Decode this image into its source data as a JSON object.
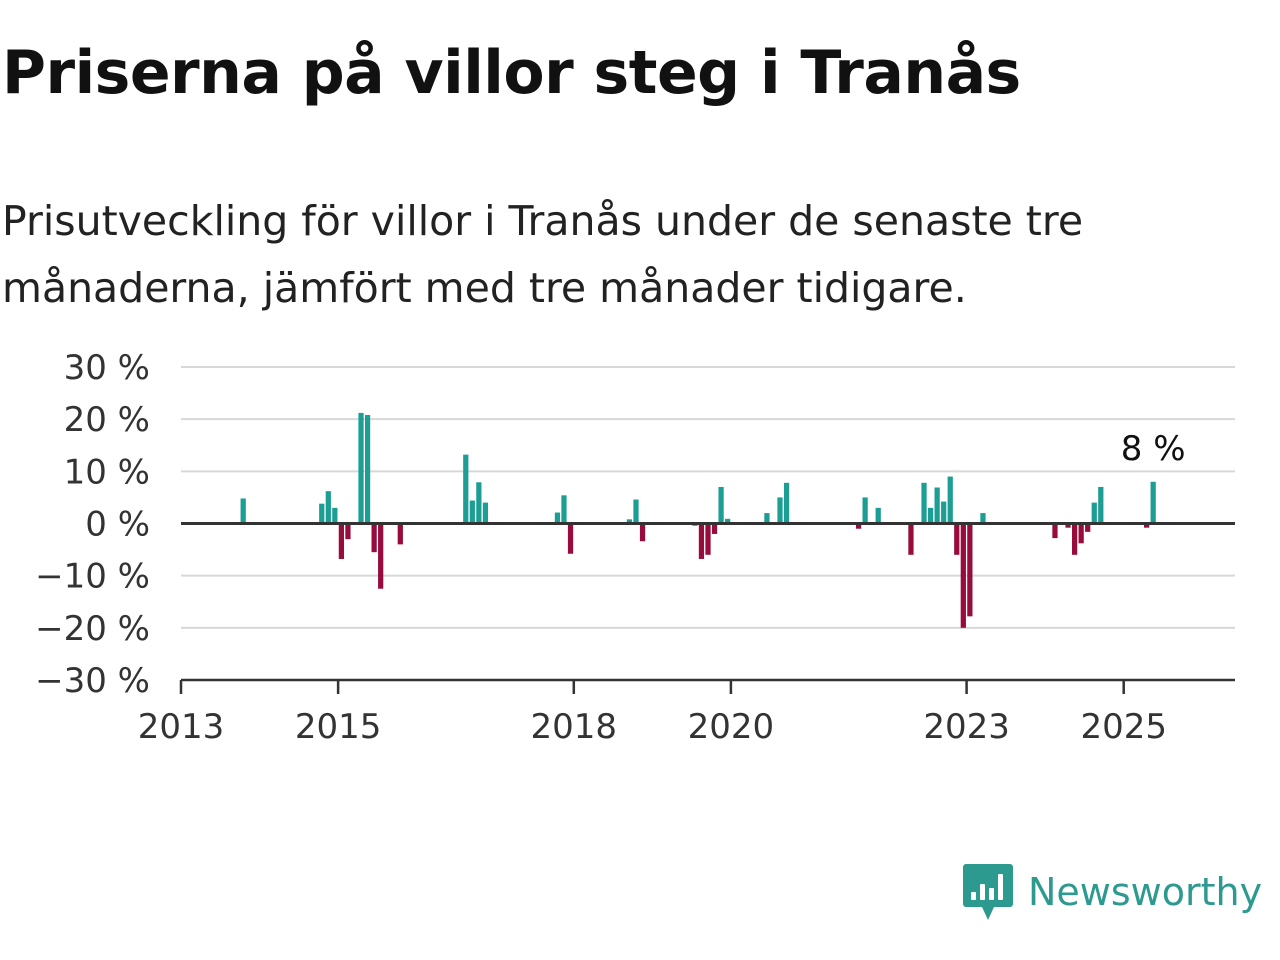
{
  "title": "Priserna på villor steg i Tranås",
  "subtitle": "Prisutveckling för villor i Tranås under de senaste tre månaderna, jämfört med tre månader tidigare.",
  "brand": {
    "name": "Newsworthy",
    "logo_icon": "newsworthy-chart-bubble-icon"
  },
  "colors": {
    "positive": "#1d9e94",
    "negative": "#970c3d",
    "grid": "#d8d8d8",
    "axis": "#333333",
    "brand": "#2d9a8f"
  },
  "chart_data": {
    "type": "bar",
    "title": "Priserna på villor steg i Tranås",
    "xlabel": "",
    "ylabel": "",
    "ylim": [
      -30,
      30
    ],
    "y_ticks": [
      30,
      20,
      10,
      0,
      -10,
      -20,
      -30
    ],
    "y_tick_labels": [
      "30 %",
      "20 %",
      "10 %",
      "0 %",
      "−10 %",
      "−20 %",
      "−30 %"
    ],
    "x_ticks": [
      "2013",
      "2015",
      "2018",
      "2020",
      "2023",
      "2025"
    ],
    "x_range": [
      "2013-01",
      "2026-06"
    ],
    "grid": true,
    "legend": "none",
    "annotation": {
      "label": "8 %",
      "x": "2025-05"
    },
    "x": [
      "2013-10",
      "2014-10",
      "2014-11",
      "2014-12",
      "2015-01",
      "2015-02",
      "2015-04",
      "2015-05",
      "2015-06",
      "2015-07",
      "2015-10",
      "2016-08",
      "2016-09",
      "2016-10",
      "2016-11",
      "2017-10",
      "2017-11",
      "2017-12",
      "2018-09",
      "2018-10",
      "2018-11",
      "2019-07",
      "2019-08",
      "2019-09",
      "2019-10",
      "2019-11",
      "2019-12",
      "2020-06",
      "2020-08",
      "2020-09",
      "2021-08",
      "2021-09",
      "2021-11",
      "2022-04",
      "2022-06",
      "2022-07",
      "2022-08",
      "2022-09",
      "2022-10",
      "2022-11",
      "2022-12",
      "2023-01",
      "2023-03",
      "2024-02",
      "2024-04",
      "2024-05",
      "2024-06",
      "2024-07",
      "2024-08",
      "2024-09",
      "2025-04",
      "2025-05"
    ],
    "values": [
      4.8,
      3.8,
      6.2,
      3.0,
      -6.8,
      -3.0,
      21.2,
      20.8,
      -5.5,
      -12.5,
      -4.0,
      13.2,
      4.4,
      7.9,
      4.0,
      2.1,
      5.4,
      -5.8,
      0.8,
      4.6,
      -3.4,
      -0.4,
      -6.8,
      -6.0,
      -2.0,
      7.0,
      0.9,
      2.0,
      5.0,
      7.8,
      -1.0,
      5.0,
      3.0,
      -6.0,
      7.8,
      3.0,
      6.9,
      4.2,
      9.0,
      -6.0,
      -20.0,
      -17.8,
      2.0,
      -2.8,
      -0.8,
      -6.0,
      -3.8,
      -1.6,
      4.0,
      7.0,
      -0.8,
      8.0
    ]
  }
}
